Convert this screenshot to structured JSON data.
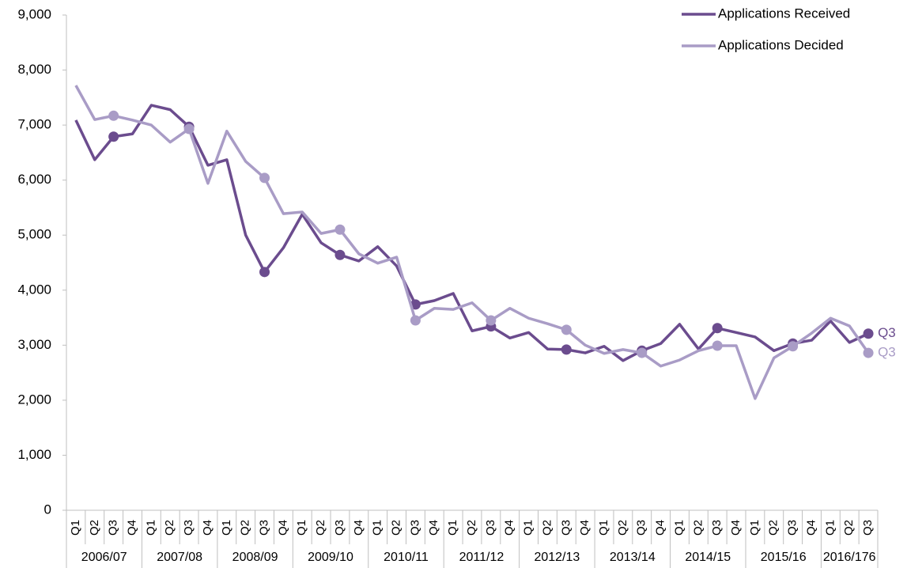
{
  "chart_data": {
    "type": "line",
    "groups": [
      {
        "label": "2006/07",
        "categories": [
          "Q1",
          "Q2",
          "Q3",
          "Q4"
        ]
      },
      {
        "label": "2007/08",
        "categories": [
          "Q1",
          "Q2",
          "Q3",
          "Q4"
        ]
      },
      {
        "label": "2008/09",
        "categories": [
          "Q1",
          "Q2",
          "Q3",
          "Q4"
        ]
      },
      {
        "label": "2009/10",
        "categories": [
          "Q1",
          "Q2",
          "Q3",
          "Q4"
        ]
      },
      {
        "label": "2010/11",
        "categories": [
          "Q1",
          "Q2",
          "Q3",
          "Q4"
        ]
      },
      {
        "label": "2011/12",
        "categories": [
          "Q1",
          "Q2",
          "Q3",
          "Q4"
        ]
      },
      {
        "label": "2012/13",
        "categories": [
          "Q1",
          "Q2",
          "Q3",
          "Q4"
        ]
      },
      {
        "label": "2013/14",
        "categories": [
          "Q1",
          "Q2",
          "Q3",
          "Q4"
        ]
      },
      {
        "label": "2014/15",
        "categories": [
          "Q1",
          "Q2",
          "Q3",
          "Q4"
        ]
      },
      {
        "label": "2015/16",
        "categories": [
          "Q1",
          "Q2",
          "Q3",
          "Q4"
        ]
      },
      {
        "label": "2016/176",
        "categories": [
          "Q1",
          "Q2",
          "Q3"
        ]
      }
    ],
    "series": [
      {
        "name": "Applications Received",
        "color": "#6b4c8e",
        "end_label": "Q3",
        "values": [
          7090,
          6370,
          6790,
          6840,
          7360,
          7280,
          6970,
          6270,
          6370,
          5000,
          4330,
          4770,
          5380,
          4860,
          4640,
          4530,
          4790,
          4440,
          3740,
          3810,
          3940,
          3260,
          3340,
          3130,
          3230,
          2930,
          2920,
          2860,
          2980,
          2720,
          2900,
          3030,
          3380,
          2930,
          3310,
          3230,
          3150,
          2900,
          3030,
          3090,
          3440,
          3050,
          3210
        ]
      },
      {
        "name": "Applications Decided",
        "color": "#a99cc6",
        "end_label": "Q3",
        "values": [
          7720,
          7100,
          7170,
          7090,
          7000,
          6690,
          6930,
          5940,
          6890,
          6340,
          6040,
          5390,
          5420,
          5030,
          5100,
          4660,
          4490,
          4600,
          3450,
          3670,
          3650,
          3770,
          3450,
          3670,
          3490,
          3390,
          3280,
          3000,
          2850,
          2920,
          2860,
          2620,
          2730,
          2900,
          2990,
          2990,
          2030,
          2770,
          2980,
          3220,
          3490,
          3350,
          2860
        ]
      }
    ],
    "ylim": [
      0,
      9000
    ],
    "yticks": [
      0,
      {
        "value": 1000,
        "label": "1,000"
      },
      {
        "value": 2000,
        "label": "2,000"
      },
      {
        "value": 3000,
        "label": "3,000"
      },
      {
        "value": 4000,
        "label": "4,000"
      },
      {
        "value": 5000,
        "label": "5,000"
      },
      {
        "value": 6000,
        "label": "6,000"
      },
      {
        "value": 7000,
        "label": "7,000"
      },
      {
        "value": 8000,
        "label": "8,000"
      },
      {
        "value": 9000,
        "label": "9,000"
      }
    ],
    "legend": "top-right"
  }
}
